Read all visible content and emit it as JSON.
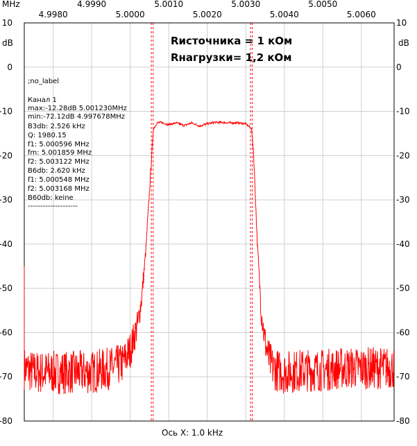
{
  "chart_data": {
    "type": "line",
    "x_unit_label": "MHz",
    "y_unit_label": "dB",
    "x_axis_caption": "Ось X: 1.0 kHz",
    "xlim": [
      4.99725,
      5.00685
    ],
    "ylim": [
      -80,
      10
    ],
    "x_ticks": [
      "4.9980",
      "4.9990",
      "5.0000",
      "5.0010",
      "5.0020",
      "5.0030",
      "5.0040",
      "5.0050",
      "5.0060"
    ],
    "x_tick_values": [
      4.998,
      4.999,
      5.0,
      5.001,
      5.002,
      5.003,
      5.004,
      5.005,
      5.006
    ],
    "y_ticks": [
      "10",
      "0",
      "-10",
      "-20",
      "-30",
      "-40",
      "-50",
      "-60",
      "-70",
      "-80"
    ],
    "y_tick_values": [
      10,
      0,
      -10,
      -20,
      -30,
      -40,
      -50,
      -60,
      -70,
      -80
    ],
    "grid": true,
    "markers_x": [
      5.000548,
      5.000596,
      5.003122,
      5.003168
    ],
    "series": [
      {
        "color": "#ff0000",
        "x": [
          4.99725,
          4.9975,
          4.998,
          4.9985,
          4.999,
          4.9995,
          4.9998,
          5.0,
          5.0002,
          5.0003,
          5.0004,
          5.0005,
          5.0006,
          5.0007,
          5.0008,
          5.001,
          5.0012,
          5.0014,
          5.0016,
          5.0018,
          5.002,
          5.0022,
          5.0024,
          5.0026,
          5.0028,
          5.003,
          5.00315,
          5.0032,
          5.0033,
          5.0034,
          5.0035,
          5.0036,
          5.0037,
          5.0038,
          5.004,
          5.0045,
          5.005,
          5.0055,
          5.006,
          5.00655
        ],
        "y": [
          -68,
          -69,
          -69,
          -69,
          -69,
          -68,
          -67,
          -64,
          -58,
          -52,
          -42,
          -28,
          -14,
          -12.6,
          -12.5,
          -13.0,
          -12.6,
          -13.2,
          -12.6,
          -13.3,
          -12.8,
          -12.5,
          -12.5,
          -12.6,
          -12.6,
          -12.8,
          -14,
          -19,
          -40,
          -55,
          -62,
          -66,
          -68,
          -68.5,
          -69,
          -68.5,
          -68.5,
          -68,
          -68,
          -68
        ]
      }
    ],
    "annotation_lines": [
      ";no_label",
      "",
      "Канал 1",
      "max:-12.28dB 5.001230MHz",
      "min:-72.12dB 4.997678MHz",
      "B3db: 2.526 kHz",
      "Q: 1980.15",
      "f1: 5.000596 MHz",
      "fm: 5.001859 MHz",
      "f2: 5.003122 MHz",
      "B6db: 2.620 kHz",
      "f1: 5.000548 MHz",
      "f2: 5.003168 MHz",
      "B60db: keine",
      "--------------------"
    ],
    "overlay_lines": [
      "Rисточника = 1 кОм",
      "Rнагрузки= 1,2 кОм"
    ]
  }
}
